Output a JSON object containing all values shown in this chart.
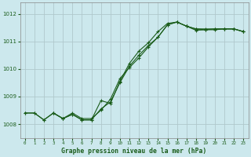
{
  "title": "Graphe pression niveau de la mer (hPa)",
  "background_color": "#cce8ed",
  "grid_color": "#b0c8cc",
  "line_color": "#1a5c1a",
  "marker_color": "#1a5c1a",
  "xlim": [
    -0.5,
    23.5
  ],
  "ylim": [
    1007.5,
    1012.4
  ],
  "yticks": [
    1008,
    1009,
    1010,
    1011,
    1012
  ],
  "xticks": [
    0,
    1,
    2,
    3,
    4,
    5,
    6,
    7,
    8,
    9,
    10,
    11,
    12,
    13,
    14,
    15,
    16,
    17,
    18,
    19,
    20,
    21,
    22,
    23
  ],
  "series1_x": [
    0,
    1,
    2,
    3,
    4,
    5,
    6,
    7,
    8,
    9,
    10,
    11,
    12,
    13,
    14,
    15,
    16,
    17,
    18,
    19,
    20,
    21,
    22,
    23
  ],
  "series1_y": [
    1008.4,
    1008.4,
    1008.15,
    1008.4,
    1008.2,
    1008.35,
    1008.15,
    1008.15,
    1008.55,
    1008.8,
    1009.5,
    1010.1,
    1010.5,
    1010.85,
    1011.15,
    1011.6,
    1011.7,
    1011.55,
    1011.45,
    1011.45,
    1011.45,
    1011.45,
    1011.45,
    1011.35
  ],
  "series2_x": [
    0,
    1,
    2,
    3,
    4,
    5,
    6,
    7,
    8,
    9,
    10,
    11,
    12,
    13,
    14,
    15,
    16,
    17,
    18,
    19,
    20,
    21,
    22,
    23
  ],
  "series2_y": [
    1008.4,
    1008.4,
    1008.15,
    1008.4,
    1008.2,
    1008.35,
    1008.15,
    1008.15,
    1008.85,
    1008.75,
    1009.55,
    1010.2,
    1010.65,
    1010.95,
    1011.35,
    1011.65,
    1011.7,
    1011.55,
    1011.4,
    1011.42,
    1011.42,
    1011.45,
    1011.45,
    1011.35
  ],
  "series3_x": [
    3,
    4,
    5,
    6,
    7,
    8,
    9,
    10,
    11,
    12,
    13,
    14,
    15,
    16,
    17,
    18,
    19,
    20,
    21,
    22,
    23
  ],
  "series3_y": [
    1008.4,
    1008.2,
    1008.4,
    1008.2,
    1008.2,
    1008.5,
    1008.9,
    1009.65,
    1010.05,
    1010.4,
    1010.8,
    1011.15,
    1011.6,
    1011.7,
    1011.55,
    1011.45,
    1011.42,
    1011.45,
    1011.45,
    1011.45,
    1011.35
  ]
}
